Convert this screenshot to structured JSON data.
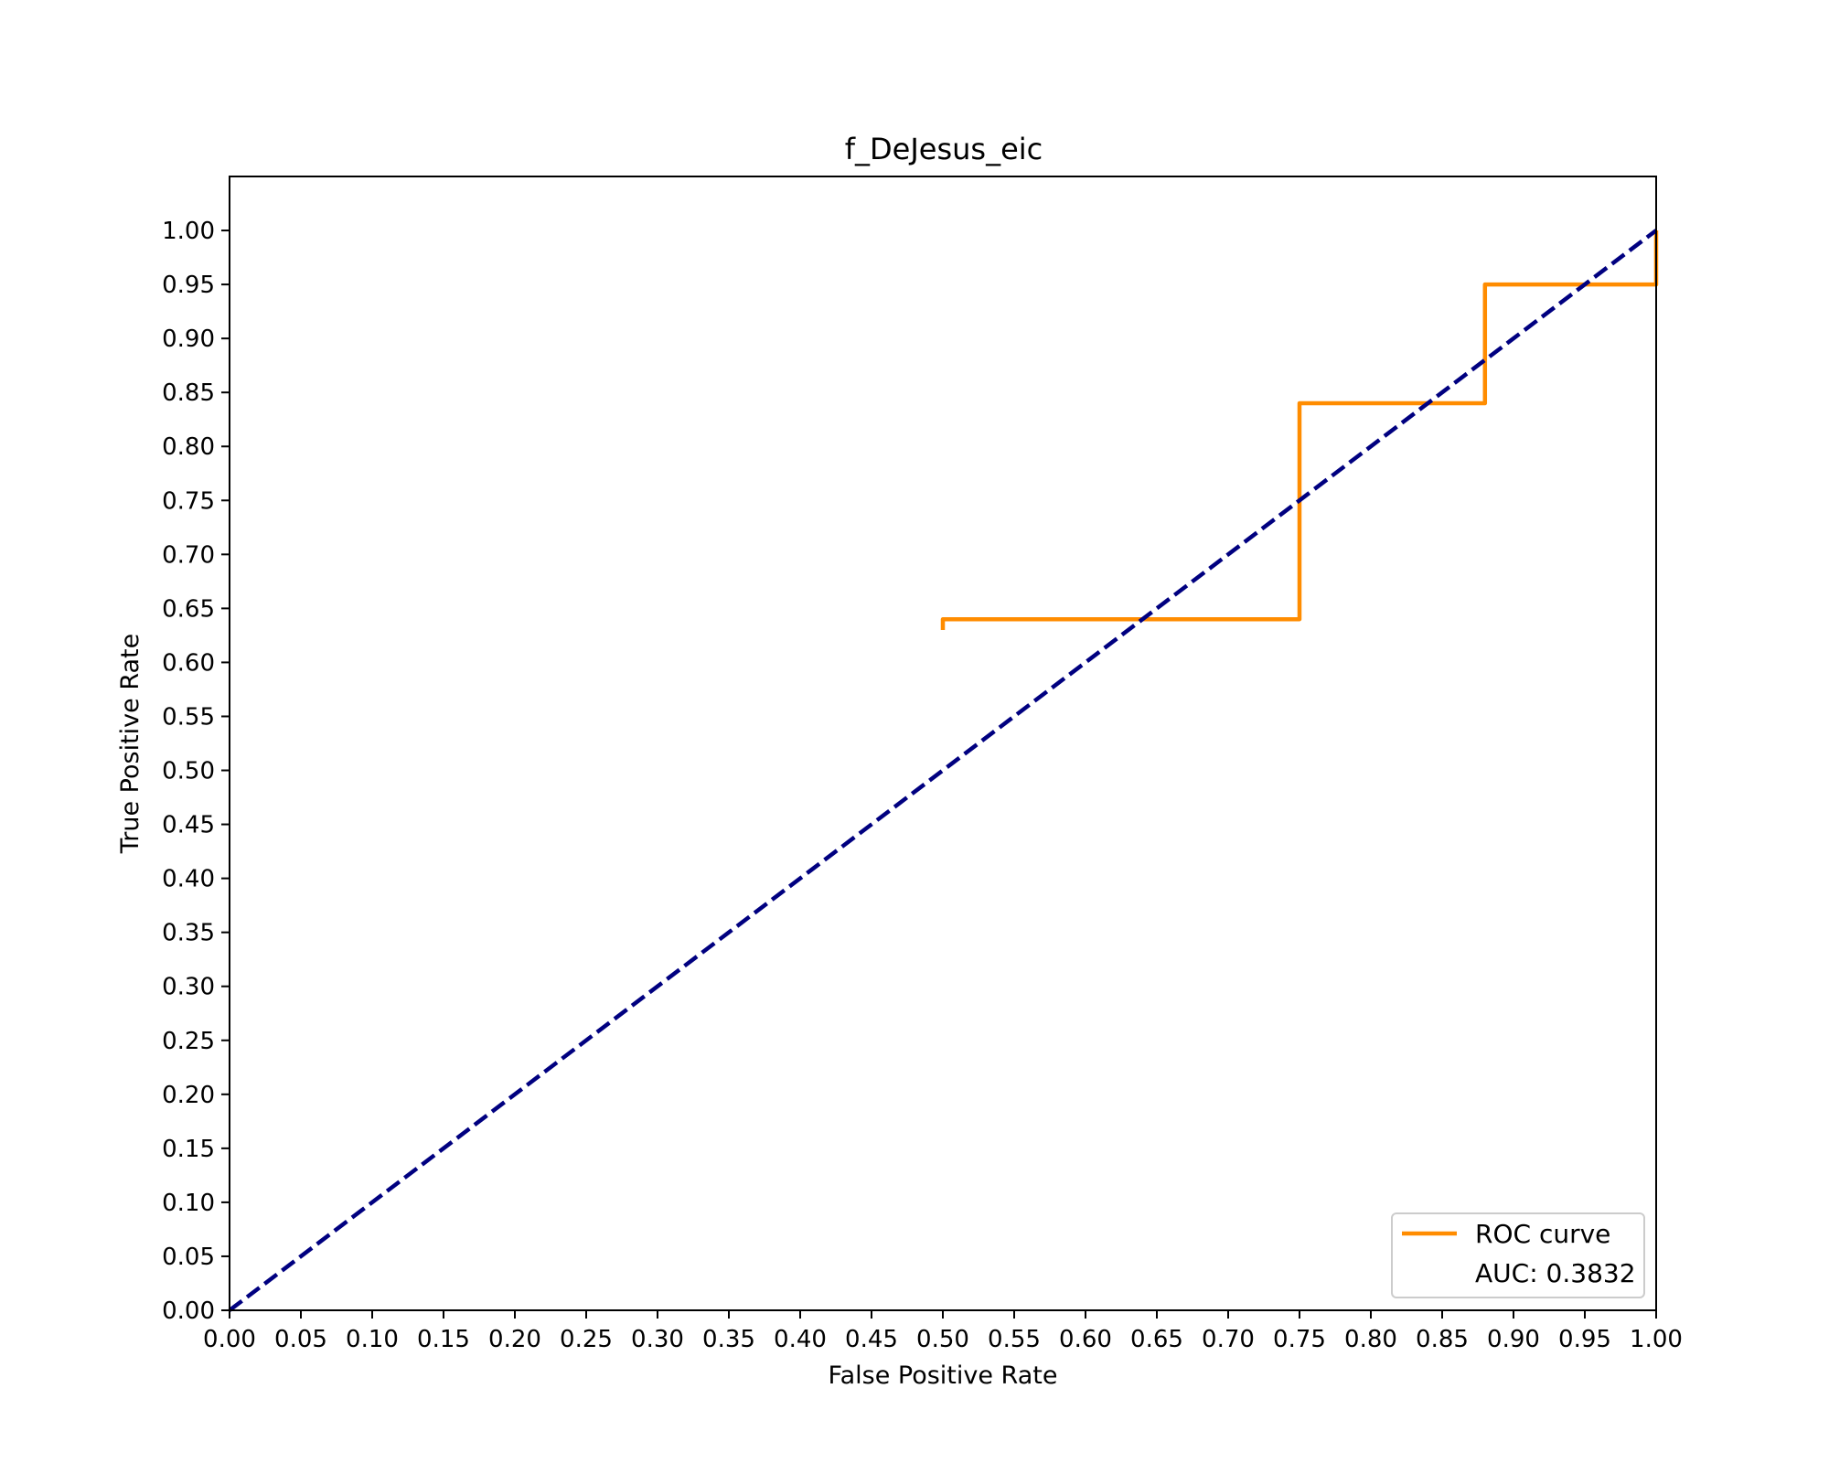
{
  "chart_data": {
    "type": "line",
    "title": "f_DeJesus_eic",
    "xlabel": "False Positive Rate",
    "ylabel": "True Positive Rate",
    "xlim": [
      0,
      1
    ],
    "ylim": [
      0,
      1.05
    ],
    "xticks": [
      "0.00",
      "0.05",
      "0.10",
      "0.15",
      "0.20",
      "0.25",
      "0.30",
      "0.35",
      "0.40",
      "0.45",
      "0.50",
      "0.55",
      "0.60",
      "0.65",
      "0.70",
      "0.75",
      "0.80",
      "0.85",
      "0.90",
      "0.95",
      "1.00"
    ],
    "yticks": [
      "0.00",
      "0.05",
      "0.10",
      "0.15",
      "0.20",
      "0.25",
      "0.30",
      "0.35",
      "0.40",
      "0.45",
      "0.50",
      "0.55",
      "0.60",
      "0.65",
      "0.70",
      "0.75",
      "0.80",
      "0.85",
      "0.90",
      "0.95",
      "1.00"
    ],
    "grid": false,
    "legend_position": "bottom-right",
    "series": [
      {
        "name": "ROC curve",
        "color": "#ff8c00",
        "style": "solid",
        "x": [
          0.5,
          0.5,
          0.75,
          0.75,
          0.88,
          0.88,
          1.0,
          1.0
        ],
        "y": [
          0.63,
          0.64,
          0.64,
          0.84,
          0.84,
          0.95,
          0.95,
          1.0
        ]
      },
      {
        "name": "",
        "color": "#000080",
        "style": "dashed",
        "x": [
          0,
          1
        ],
        "y": [
          0,
          1
        ]
      }
    ],
    "legend": {
      "entries": [
        "ROC curve",
        "AUC: 0.3832"
      ]
    }
  }
}
